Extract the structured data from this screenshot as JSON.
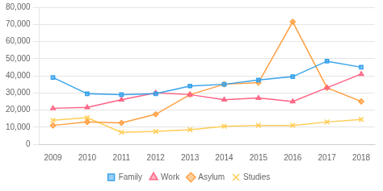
{
  "chart_data": {
    "type": "line",
    "x": [
      2009,
      2010,
      2011,
      2012,
      2013,
      2014,
      2015,
      2016,
      2017,
      2018
    ],
    "series": [
      {
        "name": "Family",
        "marker": "square",
        "values": [
          39000,
          29500,
          29000,
          29500,
          34000,
          35000,
          37500,
          39500,
          48500,
          45000
        ]
      },
      {
        "name": "Work",
        "marker": "triangle",
        "values": [
          21000,
          21500,
          26000,
          30000,
          29000,
          26000,
          27000,
          25000,
          33000,
          41000
        ]
      },
      {
        "name": "Asylum",
        "marker": "diamond",
        "values": [
          11000,
          13000,
          12500,
          17500,
          29000,
          35000,
          36000,
          71500,
          33000,
          25000
        ]
      },
      {
        "name": "Studies",
        "marker": "x",
        "values": [
          14000,
          15500,
          7000,
          7500,
          8500,
          10500,
          11000,
          11000,
          13000,
          14500
        ]
      }
    ],
    "xlim": [
      2008.6,
      2018.4
    ],
    "xticks": [
      2009,
      2010,
      2011,
      2012,
      2013,
      2014,
      2015,
      2016,
      2017,
      2018
    ],
    "ylim": [
      0,
      80000
    ],
    "yticks": [
      0,
      {
        "value": 10000,
        "label": "10,000"
      },
      {
        "value": 20000,
        "label": "20,000"
      },
      {
        "value": 30000,
        "label": "30,000"
      },
      {
        "value": 40000,
        "label": "40,000"
      },
      {
        "value": 50000,
        "label": "50,000"
      },
      {
        "value": 60000,
        "label": "60,000"
      },
      {
        "value": 70000,
        "label": "70,000"
      },
      {
        "value": 80000,
        "label": "80,000"
      }
    ],
    "grid": "y",
    "legend": "bottom"
  }
}
